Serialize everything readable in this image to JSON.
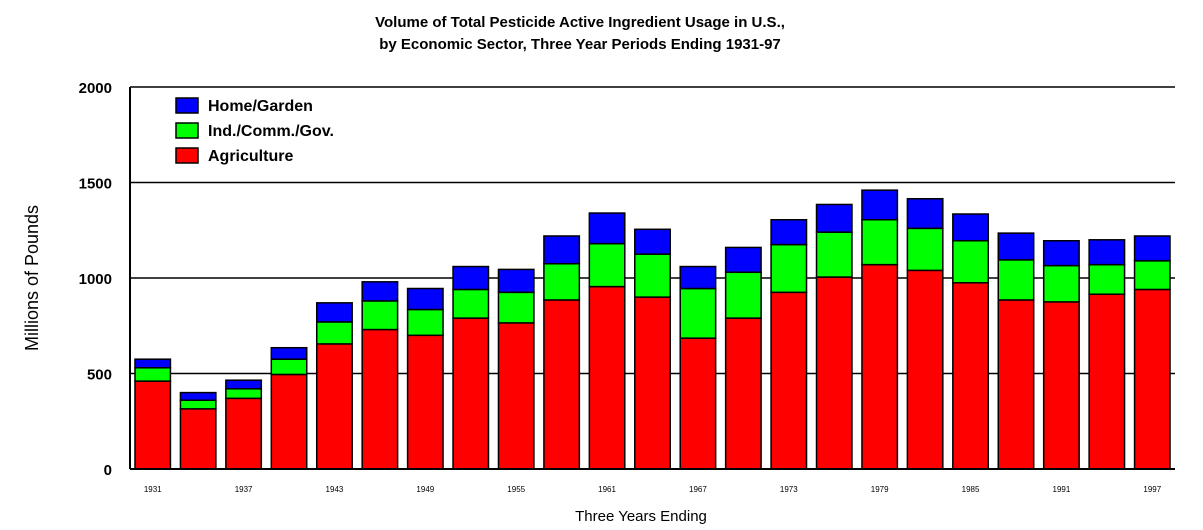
{
  "chart_data": {
    "type": "bar",
    "stacked": true,
    "title": "Volume of Total  Pesticide Active Ingredient Usage in U.S.,",
    "subtitle": "by Economic Sector, Three Year Periods Ending 1931-97",
    "xlabel": "Three Years Ending",
    "ylabel": "Millions of Pounds",
    "ylim": [
      0,
      2000
    ],
    "yticks": [
      "2000",
      "1500",
      "1000",
      "500",
      "0"
    ],
    "grid": true,
    "legend_position": "top-left",
    "categories": [
      "1931",
      "1934",
      "1937",
      "1940",
      "1943",
      "1946",
      "1949",
      "1952",
      "1955",
      "1958",
      "1961",
      "1964",
      "1967",
      "1970",
      "1973",
      "1976",
      "1979",
      "1982",
      "1985",
      "1988",
      "1991",
      "1994",
      "1997"
    ],
    "x_tick_labels": [
      "1931",
      "1937",
      "1943",
      "1949",
      "1955",
      "1961",
      "1967",
      "1973",
      "1979",
      "1985",
      "1991",
      "1997"
    ],
    "series": [
      {
        "name": "Agriculture",
        "color": "#ff0000",
        "values": [
          460,
          315,
          370,
          495,
          655,
          730,
          700,
          790,
          765,
          885,
          955,
          900,
          685,
          790,
          925,
          1005,
          1070,
          1040,
          975,
          885,
          875,
          915,
          940
        ]
      },
      {
        "name": "Ind./Comm./Gov.",
        "color": "#00ff00",
        "values": [
          70,
          45,
          50,
          80,
          115,
          150,
          135,
          150,
          160,
          190,
          225,
          225,
          260,
          240,
          250,
          235,
          235,
          220,
          220,
          210,
          190,
          155,
          150
        ]
      },
      {
        "name": "Home/Garden",
        "color": "#0000ff",
        "values": [
          45,
          40,
          45,
          60,
          100,
          100,
          110,
          120,
          120,
          145,
          160,
          130,
          115,
          130,
          130,
          145,
          155,
          155,
          140,
          140,
          130,
          130,
          130
        ]
      }
    ]
  }
}
